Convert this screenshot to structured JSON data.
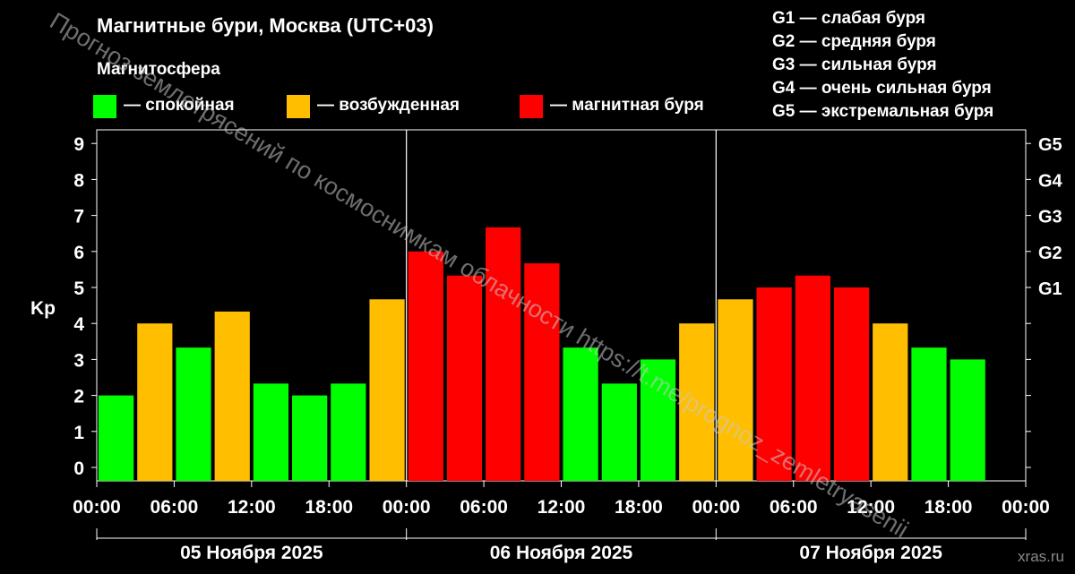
{
  "chart_data": {
    "type": "bar",
    "title": "Магнитные бури, Москва (UTC+03)",
    "subtitle": "Магнитосфера",
    "ylabel": "Kp",
    "ylim": [
      0,
      9.5
    ],
    "yticks": [
      "0",
      "1",
      "2",
      "3",
      "4",
      "5",
      "6",
      "7",
      "8",
      "9"
    ],
    "g_ticks": [
      {
        "value": 5,
        "label": "G1"
      },
      {
        "value": 6,
        "label": "G2"
      },
      {
        "value": 7,
        "label": "G3"
      },
      {
        "value": 8,
        "label": "G4"
      },
      {
        "value": 9,
        "label": "G5"
      }
    ],
    "x_tick_labels": [
      "00:00",
      "06:00",
      "12:00",
      "18:00",
      "00:00",
      "06:00",
      "12:00",
      "18:00",
      "00:00",
      "06:00",
      "12:00",
      "18:00",
      "00:00"
    ],
    "days": [
      "05 Ноября 2025",
      "06 Ноября 2025",
      "07 Ноября 2025"
    ],
    "values": [
      2.0,
      4.0,
      3.33,
      4.33,
      2.33,
      2.0,
      2.33,
      4.67,
      6.0,
      5.33,
      6.67,
      5.67,
      3.33,
      2.33,
      3.0,
      4.0,
      4.67,
      5.0,
      5.33,
      5.0,
      4.0,
      3.33,
      3.0
    ],
    "legend": [
      {
        "label": "— спокойная",
        "color": "#00ff00"
      },
      {
        "label": "— возбужденная",
        "color": "#ffbf00"
      },
      {
        "label": "— магнитная буря",
        "color": "#ff0000"
      }
    ],
    "g_levels": [
      "G1 — слабая буря",
      "G2 — средняя буря",
      "G3 — сильная буря",
      "G4 — очень сильная буря",
      "G5 — экстремальная буря"
    ],
    "colors": {
      "calm": "#00ff00",
      "excited": "#ffbf00",
      "storm": "#ff0000"
    }
  },
  "watermark": {
    "main": "Прогноз землетрясений по космоснимкам облачности  https://t.me/prognoz_zemletryasenii",
    "site": "xras.ru"
  }
}
